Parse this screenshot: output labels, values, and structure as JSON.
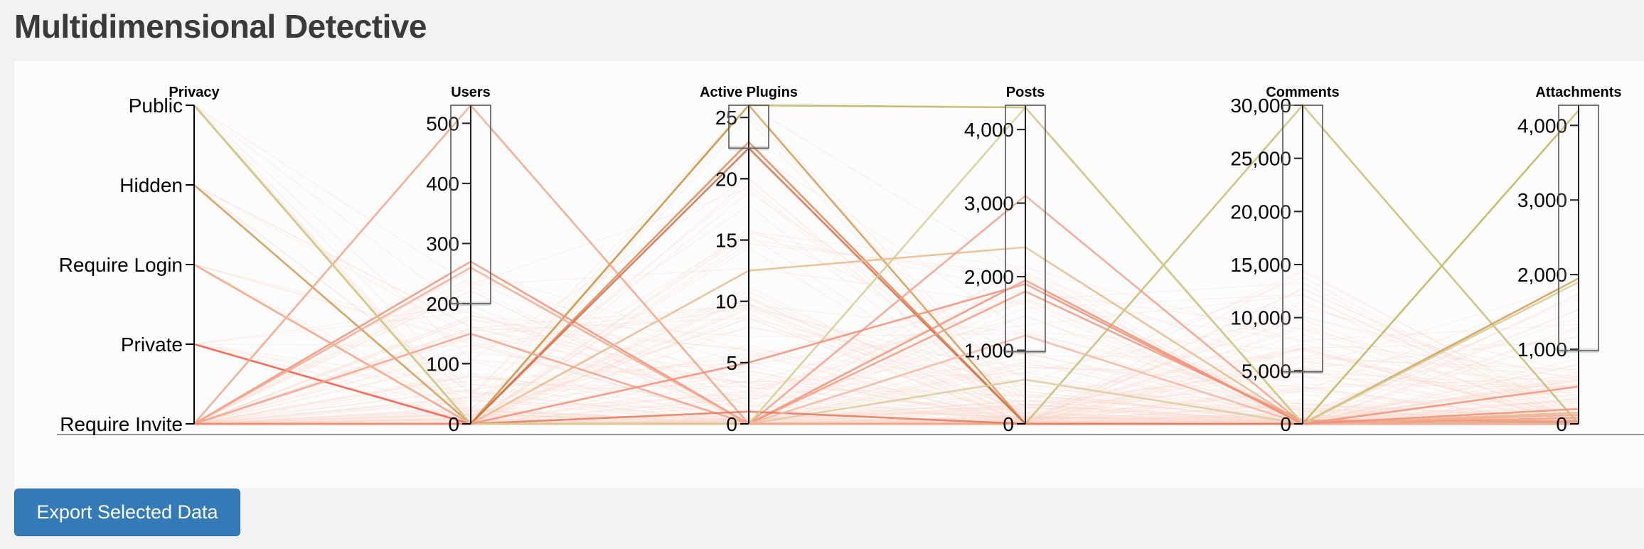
{
  "page": {
    "title": "Multidimensional Detective"
  },
  "actions": {
    "export_label": "Export Selected Data"
  },
  "chart_data": {
    "type": "parallel-coordinates",
    "title": "",
    "dimensions": [
      {
        "name": "Privacy",
        "kind": "categorical",
        "categories": [
          "Public",
          "Hidden",
          "Require Login",
          "Private",
          "Require Invite"
        ]
      },
      {
        "name": "Users",
        "kind": "numeric",
        "domain": [
          0,
          530
        ],
        "ticks": [
          0,
          100,
          200,
          300,
          400,
          500
        ],
        "brush": [
          200,
          530
        ]
      },
      {
        "name": "Active Plugins",
        "kind": "numeric",
        "domain": [
          0,
          26
        ],
        "ticks": [
          0,
          5,
          10,
          15,
          20,
          25
        ],
        "brush": [
          22.5,
          26
        ]
      },
      {
        "name": "Posts",
        "kind": "numeric",
        "domain": [
          0,
          4330
        ],
        "ticks": [
          0,
          1000,
          2000,
          3000,
          4000
        ],
        "brush": [
          980,
          4330
        ]
      },
      {
        "name": "Comments",
        "kind": "numeric",
        "domain": [
          0,
          30000
        ],
        "ticks": [
          0,
          5000,
          10000,
          15000,
          20000,
          25000,
          30000
        ],
        "brush": [
          4900,
          30000
        ]
      },
      {
        "name": "Attachments",
        "kind": "numeric",
        "domain": [
          0,
          4270
        ],
        "ticks": [
          0,
          1000,
          2000,
          3000,
          4000
        ],
        "brush": [
          980,
          4270
        ]
      }
    ],
    "highlighted_records": [
      {
        "values": [
          "Public",
          0,
          26,
          4300,
          0,
          4200
        ],
        "color": "#bdb35a"
      },
      {
        "values": [
          "Public",
          0,
          0,
          0,
          30000,
          0
        ],
        "color": "#c5bb72"
      },
      {
        "values": [
          "Hidden",
          0,
          26,
          0,
          0,
          1950
        ],
        "color": "#d19a55"
      },
      {
        "values": [
          "Require Login",
          0,
          23,
          0,
          0,
          20
        ],
        "color": "#e0854e"
      },
      {
        "values": [
          "Private",
          0,
          0,
          0,
          0,
          0
        ],
        "color": "#ef5b45"
      },
      {
        "values": [
          "Require Invite",
          530,
          0,
          0,
          0,
          0
        ],
        "color": "#f2a183"
      },
      {
        "values": [
          "Require Invite",
          270,
          0,
          1950,
          0,
          500
        ],
        "color": "#ee9078"
      },
      {
        "values": [
          "Require Invite",
          0,
          22.5,
          0,
          0,
          0
        ],
        "color": "#cf6f4a"
      },
      {
        "values": [
          "Require Invite",
          0,
          12.5,
          2400,
          0,
          150
        ],
        "color": "#e8b98c"
      },
      {
        "values": [
          "Require Invite",
          150,
          0,
          3100,
          0,
          80
        ],
        "color": "#f0a088"
      },
      {
        "values": [
          "Require Invite",
          0,
          0,
          600,
          0,
          10
        ],
        "color": "#d9cda0"
      },
      {
        "values": [
          "Require Invite",
          0,
          0,
          1800,
          300,
          40
        ],
        "color": "#f09a80"
      },
      {
        "values": [
          "Require Invite",
          260,
          0,
          0,
          0,
          120
        ],
        "color": "#f2a98f"
      },
      {
        "values": [
          "Require Invite",
          0,
          1,
          0,
          0,
          0
        ],
        "color": "#e07a5a"
      },
      {
        "values": [
          "Require Login",
          0,
          0,
          1200,
          0,
          0
        ],
        "color": "#f4b5a0"
      },
      {
        "values": [
          "Public",
          0,
          0,
          4300,
          0,
          1900
        ],
        "color": "#d4cc90"
      },
      {
        "values": [
          "Require Invite",
          0,
          5,
          1900,
          0,
          200
        ],
        "color": "#ef8f78"
      }
    ],
    "context_color": "#f8d8cc"
  }
}
